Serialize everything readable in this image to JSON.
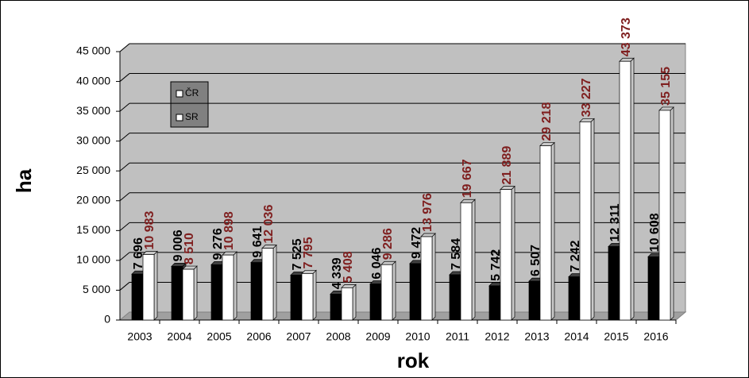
{
  "chart_data": {
    "type": "bar3d",
    "x_label": "rok",
    "y_label": "ha",
    "categories": [
      "2003",
      "2004",
      "2005",
      "2006",
      "2007",
      "2008",
      "2009",
      "2010",
      "2011",
      "2012",
      "2013",
      "2014",
      "2015",
      "2016"
    ],
    "series": [
      {
        "name": "ČR",
        "color": "#000000",
        "label_color": "#000000",
        "values": [
          7696,
          9006,
          9276,
          9641,
          7525,
          4339,
          6046,
          9472,
          7584,
          5742,
          6507,
          7242,
          12311,
          10608
        ],
        "value_labels": [
          "7 696",
          "9 006",
          "9 276",
          "9 641",
          "7 525",
          "4 339",
          "6 046",
          "9 472",
          "7 584",
          "5 742",
          "6 507",
          "7 242",
          "12 311",
          "10 608"
        ]
      },
      {
        "name": "SR",
        "color": "#ffffff",
        "label_color": "#7f1f1f",
        "values": [
          10983,
          8510,
          10898,
          12036,
          7795,
          5408,
          9286,
          13976,
          19667,
          21889,
          29218,
          33227,
          43373,
          35155
        ],
        "value_labels": [
          "10 983",
          "8 510",
          "10 898",
          "12 036",
          "7 795",
          "5 408",
          "9 286",
          "13 976",
          "19 667",
          "21 889",
          "29 218",
          "33 227",
          "43 373",
          "35 155"
        ]
      }
    ],
    "ylim": [
      0,
      45000
    ],
    "yticks": [
      0,
      {
        "value": 5000,
        "label": "5 000"
      },
      {
        "value": 10000,
        "label": "10 000"
      },
      {
        "value": 15000,
        "label": "15 000"
      },
      {
        "value": 20000,
        "label": "20 000"
      },
      {
        "value": 25000,
        "label": "25 000"
      },
      {
        "value": 30000,
        "label": "30 000"
      },
      {
        "value": 35000,
        "label": "35 000"
      },
      {
        "value": 40000,
        "label": "40 000"
      },
      {
        "value": 45000,
        "label": "45 000"
      }
    ],
    "grid": true
  }
}
